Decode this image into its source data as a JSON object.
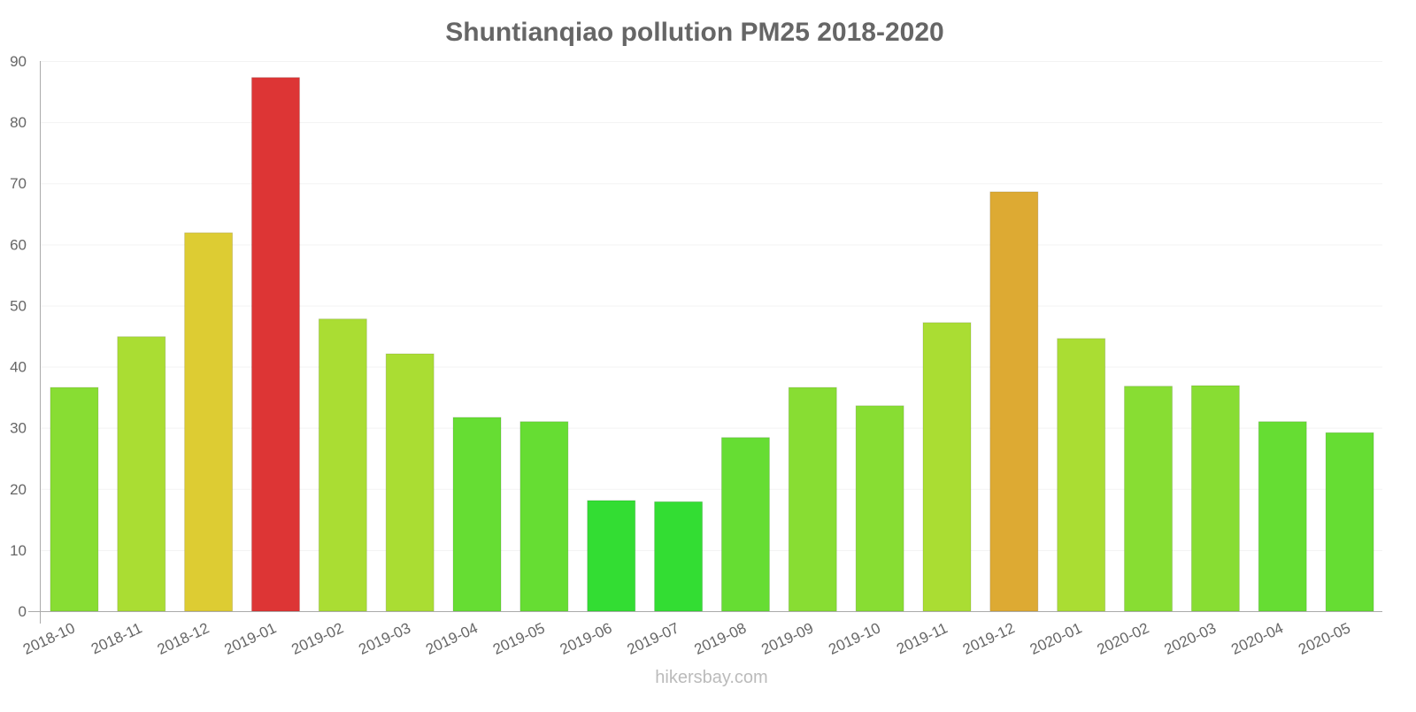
{
  "chart_data": {
    "type": "bar",
    "title": "Shuntianqiao pollution PM25 2018-2020",
    "xlabel": "",
    "ylabel": "",
    "ylim": [
      0,
      90
    ],
    "yticks": [
      0,
      10,
      20,
      30,
      40,
      50,
      60,
      70,
      80,
      90
    ],
    "grid": true,
    "categories": [
      "2018-10",
      "2018-11",
      "2018-12",
      "2019-01",
      "2019-02",
      "2019-03",
      "2019-04",
      "2019-05",
      "2019-06",
      "2019-07",
      "2019-08",
      "2019-09",
      "2019-10",
      "2019-11",
      "2019-12",
      "2020-01",
      "2020-02",
      "2020-03",
      "2020-04",
      "2020-05"
    ],
    "values": [
      36.6,
      44.9,
      61.9,
      87.3,
      47.8,
      42.1,
      31.7,
      31.0,
      18.1,
      17.9,
      28.4,
      36.6,
      33.6,
      47.2,
      68.6,
      44.6,
      36.8,
      36.9,
      31.0,
      29.2
    ],
    "colors": [
      "#88dd33",
      "#aadd33",
      "#ddcc33",
      "#dd3535",
      "#aadd33",
      "#aadd33",
      "#66dd33",
      "#66dd33",
      "#33dd33",
      "#33dd33",
      "#66dd33",
      "#88dd33",
      "#88dd33",
      "#aadd33",
      "#ddaa33",
      "#aadd33",
      "#88dd33",
      "#88dd33",
      "#66dd33",
      "#66dd33"
    ]
  },
  "watermark": "hikersbay.com"
}
